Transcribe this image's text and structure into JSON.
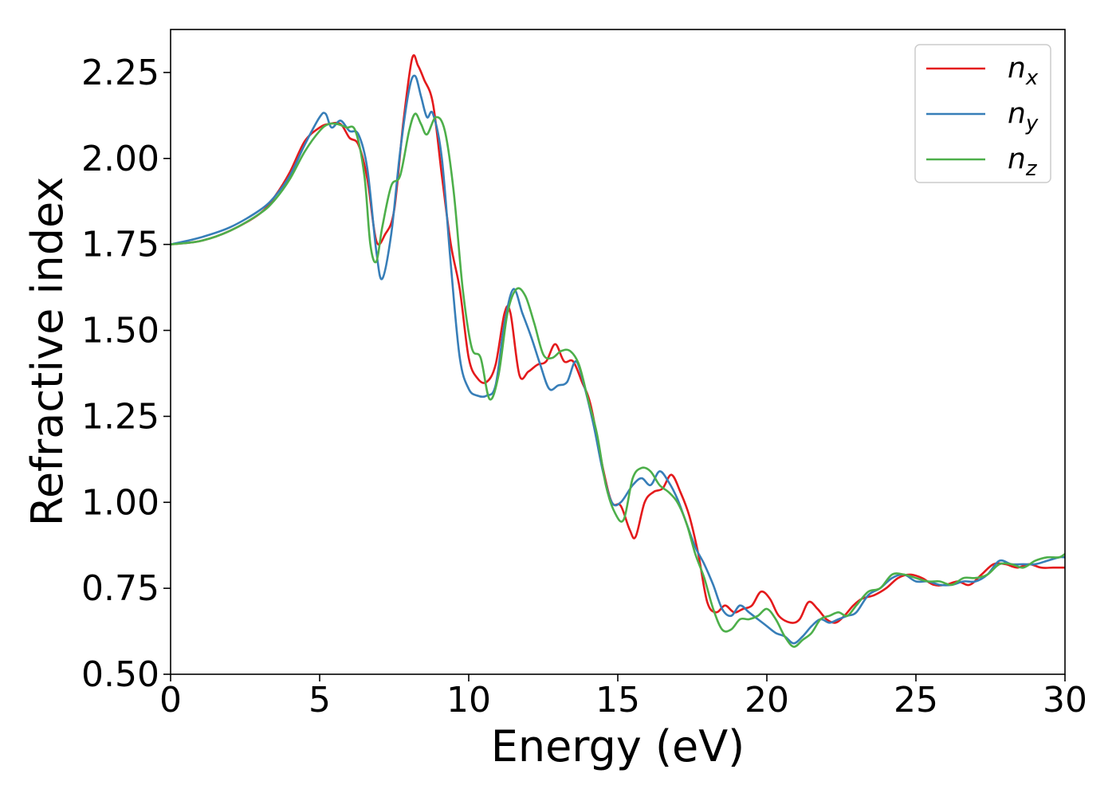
{
  "chart_data": {
    "type": "line",
    "title": "",
    "xlabel": "Energy (eV)",
    "ylabel": "Refractive index",
    "xlim": [
      0,
      30
    ],
    "ylim": [
      0.5,
      2.375
    ],
    "xticks": [
      0,
      5,
      10,
      15,
      20,
      25,
      30
    ],
    "yticks": [
      0.5,
      0.75,
      1.0,
      1.25,
      1.5,
      1.75,
      2.0,
      2.25
    ],
    "xtick_labels": [
      "0",
      "5",
      "10",
      "15",
      "20",
      "25",
      "30"
    ],
    "ytick_labels": [
      "0.50",
      "0.75",
      "1.00",
      "1.25",
      "1.50",
      "1.75",
      "2.00",
      "2.25"
    ],
    "grid": false,
    "legend_position": "top-right",
    "series": [
      {
        "name": "n",
        "subscript": "x",
        "color": "#e41a1c",
        "x": [
          0,
          1,
          2,
          3,
          3.5,
          4,
          4.5,
          5,
          5.3,
          5.7,
          6,
          6.3,
          6.6,
          6.9,
          7.2,
          7.5,
          7.8,
          8.1,
          8.3,
          8.5,
          8.8,
          9.1,
          9.4,
          9.7,
          10,
          10.3,
          10.6,
          10.9,
          11.2,
          11.4,
          11.7,
          12,
          12.3,
          12.6,
          12.9,
          13.2,
          13.5,
          13.8,
          14.1,
          14.5,
          14.8,
          15.1,
          15.4,
          15.6,
          15.9,
          16.2,
          16.5,
          16.8,
          17.1,
          17.4,
          17.7,
          18,
          18.3,
          18.6,
          18.9,
          19.2,
          19.5,
          19.8,
          20.1,
          20.4,
          20.8,
          21.1,
          21.4,
          21.7,
          22,
          22.3,
          22.6,
          22.9,
          23.2,
          23.6,
          24,
          24.4,
          24.8,
          25.2,
          25.6,
          26,
          26.4,
          26.8,
          27.2,
          27.6,
          28,
          28.4,
          28.8,
          29.2,
          29.6,
          30
        ],
        "y": [
          1.75,
          1.76,
          1.79,
          1.84,
          1.89,
          1.96,
          2.05,
          2.09,
          2.1,
          2.1,
          2.06,
          2.04,
          1.94,
          1.76,
          1.78,
          1.85,
          2.1,
          2.29,
          2.27,
          2.23,
          2.16,
          1.95,
          1.75,
          1.62,
          1.42,
          1.36,
          1.35,
          1.4,
          1.55,
          1.55,
          1.37,
          1.38,
          1.4,
          1.41,
          1.46,
          1.41,
          1.41,
          1.35,
          1.28,
          1.1,
          1.0,
          0.99,
          0.92,
          0.9,
          1.0,
          1.03,
          1.04,
          1.08,
          1.03,
          0.96,
          0.85,
          0.71,
          0.68,
          0.7,
          0.68,
          0.69,
          0.7,
          0.74,
          0.72,
          0.67,
          0.65,
          0.66,
          0.71,
          0.69,
          0.66,
          0.65,
          0.67,
          0.7,
          0.72,
          0.73,
          0.75,
          0.78,
          0.79,
          0.78,
          0.76,
          0.76,
          0.77,
          0.76,
          0.79,
          0.82,
          0.82,
          0.81,
          0.82,
          0.81,
          0.81,
          0.81
        ]
      },
      {
        "name": "n",
        "subscript": "y",
        "color": "#377eb8",
        "x": [
          0,
          1,
          2,
          3,
          3.5,
          4,
          4.5,
          5,
          5.2,
          5.4,
          5.7,
          6,
          6.3,
          6.6,
          6.9,
          7.1,
          7.4,
          7.7,
          8,
          8.2,
          8.4,
          8.6,
          8.8,
          9.1,
          9.4,
          9.7,
          10,
          10.3,
          10.6,
          10.9,
          11.2,
          11.5,
          11.8,
          12.1,
          12.4,
          12.7,
          13,
          13.3,
          13.6,
          13.9,
          14.2,
          14.5,
          14.8,
          15.1,
          15.5,
          15.8,
          16.1,
          16.4,
          16.7,
          17,
          17.3,
          17.6,
          17.9,
          18.2,
          18.5,
          18.8,
          19.1,
          19.4,
          19.7,
          20,
          20.3,
          20.6,
          20.9,
          21.2,
          21.5,
          21.8,
          22.1,
          22.4,
          22.7,
          23,
          23.4,
          23.8,
          24.2,
          24.6,
          25,
          25.4,
          25.8,
          26.2,
          26.6,
          27,
          27.4,
          27.8,
          28.2,
          28.6,
          29,
          29.4,
          29.8,
          30
        ],
        "y": [
          1.75,
          1.77,
          1.8,
          1.85,
          1.89,
          1.95,
          2.04,
          2.12,
          2.13,
          2.09,
          2.11,
          2.08,
          2.07,
          1.97,
          1.73,
          1.65,
          1.78,
          2.02,
          2.2,
          2.24,
          2.18,
          2.12,
          2.13,
          2.0,
          1.69,
          1.42,
          1.33,
          1.31,
          1.31,
          1.34,
          1.52,
          1.62,
          1.55,
          1.48,
          1.4,
          1.33,
          1.34,
          1.35,
          1.41,
          1.33,
          1.22,
          1.09,
          1.0,
          1.0,
          1.05,
          1.07,
          1.05,
          1.09,
          1.06,
          1.01,
          0.94,
          0.87,
          0.82,
          0.76,
          0.69,
          0.67,
          0.7,
          0.68,
          0.66,
          0.64,
          0.62,
          0.61,
          0.59,
          0.61,
          0.64,
          0.66,
          0.65,
          0.66,
          0.67,
          0.68,
          0.73,
          0.75,
          0.78,
          0.79,
          0.77,
          0.77,
          0.76,
          0.76,
          0.77,
          0.77,
          0.79,
          0.83,
          0.82,
          0.82,
          0.82,
          0.83,
          0.84,
          0.84
        ]
      },
      {
        "name": "n",
        "subscript": "z",
        "color": "#4daf4a",
        "x": [
          0,
          1,
          2,
          3,
          3.5,
          4,
          4.5,
          5,
          5.3,
          5.6,
          5.9,
          6.2,
          6.5,
          6.7,
          6.9,
          7.1,
          7.4,
          7.7,
          8,
          8.2,
          8.4,
          8.6,
          8.9,
          9.2,
          9.5,
          9.8,
          10.1,
          10.4,
          10.7,
          11,
          11.3,
          11.6,
          11.9,
          12.2,
          12.5,
          12.8,
          13.1,
          13.4,
          13.7,
          14,
          14.3,
          14.6,
          14.9,
          15.2,
          15.5,
          15.8,
          16.1,
          16.4,
          16.7,
          17,
          17.3,
          17.6,
          17.9,
          18.2,
          18.5,
          18.8,
          19.1,
          19.4,
          19.7,
          20,
          20.3,
          20.6,
          20.9,
          21.2,
          21.5,
          21.8,
          22.1,
          22.4,
          22.7,
          23,
          23.4,
          23.8,
          24.2,
          24.6,
          25,
          25.4,
          25.8,
          26.2,
          26.6,
          27,
          27.4,
          27.8,
          28.2,
          28.6,
          29,
          29.4,
          29.8,
          30
        ],
        "y": [
          1.75,
          1.76,
          1.79,
          1.84,
          1.88,
          1.94,
          2.02,
          2.08,
          2.1,
          2.1,
          2.09,
          2.08,
          1.95,
          1.75,
          1.7,
          1.8,
          1.92,
          1.95,
          2.08,
          2.13,
          2.1,
          2.07,
          2.12,
          2.08,
          1.9,
          1.62,
          1.45,
          1.42,
          1.3,
          1.37,
          1.55,
          1.62,
          1.6,
          1.52,
          1.43,
          1.42,
          1.44,
          1.44,
          1.4,
          1.3,
          1.2,
          1.05,
          0.97,
          0.95,
          1.07,
          1.1,
          1.09,
          1.05,
          1.03,
          1.0,
          0.94,
          0.85,
          0.78,
          0.69,
          0.63,
          0.63,
          0.66,
          0.66,
          0.67,
          0.69,
          0.66,
          0.61,
          0.58,
          0.6,
          0.62,
          0.66,
          0.67,
          0.68,
          0.67,
          0.7,
          0.74,
          0.75,
          0.79,
          0.79,
          0.78,
          0.77,
          0.77,
          0.76,
          0.78,
          0.78,
          0.79,
          0.82,
          0.82,
          0.81,
          0.83,
          0.84,
          0.84,
          0.85
        ]
      }
    ]
  }
}
